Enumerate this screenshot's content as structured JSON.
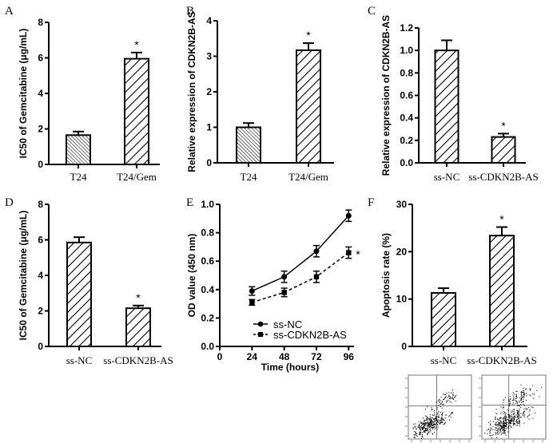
{
  "figure": {
    "background": "#ffffff",
    "ink_color": "#000000"
  },
  "chart_data": [
    {
      "panel": "A",
      "type": "bar",
      "title": "",
      "xlabel": "",
      "ylabel": "IC50 of Gemcitabine (μg/mL)",
      "categories": [
        "T24",
        "T24/Gem"
      ],
      "values": [
        1.65,
        5.95
      ],
      "errors": [
        0.2,
        0.35
      ],
      "patterns": [
        "dense-hatch",
        "hatch"
      ],
      "significance": [
        "",
        "*"
      ],
      "ylim": [
        0,
        8
      ],
      "yticks": [
        0,
        2,
        4,
        6,
        8
      ],
      "ytick_labels": [
        "0",
        "2",
        "4",
        "6",
        "8"
      ],
      "grid": false
    },
    {
      "panel": "B",
      "type": "bar",
      "title": "",
      "xlabel": "",
      "ylabel": "Relative expression of CDKN2B-AS",
      "categories": [
        "T24",
        "T24/Gem"
      ],
      "values": [
        1.0,
        3.17
      ],
      "errors": [
        0.12,
        0.2
      ],
      "patterns": [
        "dense-hatch",
        "hatch"
      ],
      "significance": [
        "",
        "*"
      ],
      "ylim": [
        0,
        4
      ],
      "yticks": [
        0,
        1,
        2,
        3,
        4
      ],
      "ytick_labels": [
        "0",
        "1",
        "2",
        "3",
        "4"
      ],
      "grid": false
    },
    {
      "panel": "C",
      "type": "bar",
      "title": "",
      "xlabel": "",
      "ylabel": "Relative expression of CDKN2B-AS",
      "categories": [
        "ss-NC",
        "ss-CDKN2B-AS"
      ],
      "values": [
        1.0,
        0.23
      ],
      "errors": [
        0.09,
        0.03
      ],
      "patterns": [
        "hatch",
        "hatch"
      ],
      "significance": [
        "",
        "*"
      ],
      "ylim": [
        0,
        1.2
      ],
      "yticks": [
        0,
        0.2,
        0.4,
        0.6,
        0.8,
        1.0,
        1.2
      ],
      "ytick_labels": [
        "0.0",
        "0.2",
        "0.4",
        "0.6",
        "0.8",
        "1.0",
        "1.2"
      ],
      "grid": false
    },
    {
      "panel": "D",
      "type": "bar",
      "title": "",
      "xlabel": "",
      "ylabel": "IC50 of Gemcitabine (μg/mL)",
      "categories": [
        "ss-NC",
        "ss-CDKN2B-AS"
      ],
      "values": [
        5.85,
        2.15
      ],
      "errors": [
        0.3,
        0.15
      ],
      "patterns": [
        "hatch",
        "hatch"
      ],
      "significance": [
        "",
        "*"
      ],
      "ylim": [
        0,
        8
      ],
      "yticks": [
        0,
        2,
        4,
        6,
        8
      ],
      "ytick_labels": [
        "0",
        "2",
        "4",
        "6",
        "8"
      ],
      "grid": false
    },
    {
      "panel": "E",
      "type": "line",
      "title": "",
      "xlabel": "Time (hours)",
      "ylabel": "OD value (450 nm)",
      "x": [
        24,
        48,
        72,
        96
      ],
      "series": [
        {
          "name": "ss-NC",
          "values": [
            0.39,
            0.49,
            0.67,
            0.92
          ],
          "errors": [
            0.03,
            0.04,
            0.04,
            0.04
          ],
          "marker": "circle",
          "dash": "solid",
          "significance": ""
        },
        {
          "name": "ss-CDKN2B-AS",
          "values": [
            0.31,
            0.38,
            0.49,
            0.66
          ],
          "errors": [
            0.02,
            0.03,
            0.04,
            0.04
          ],
          "marker": "square",
          "dash": "dashed",
          "significance": "*"
        }
      ],
      "xlim": [
        0,
        100
      ],
      "xticks": [
        0,
        24,
        48,
        72,
        96
      ],
      "xtick_labels": [
        "0",
        "24",
        "48",
        "72",
        "96"
      ],
      "ylim": [
        0,
        1.0
      ],
      "yticks": [
        0,
        0.2,
        0.4,
        0.6,
        0.8,
        1.0
      ],
      "ytick_labels": [
        "0.0",
        "0.2",
        "0.4",
        "0.6",
        "0.8",
        "1.0"
      ],
      "legend": "bottom-right",
      "grid": false
    },
    {
      "panel": "F",
      "type": "bar",
      "title": "",
      "xlabel": "",
      "ylabel": "Apoptosis rate (%)",
      "categories": [
        "ss-NC",
        "ss-CDKN2B-AS"
      ],
      "values": [
        11.3,
        23.4
      ],
      "errors": [
        1.0,
        1.8
      ],
      "patterns": [
        "hatch",
        "hatch"
      ],
      "significance": [
        "",
        "*"
      ],
      "ylim": [
        0,
        30
      ],
      "yticks": [
        0,
        10,
        20,
        30
      ],
      "ytick_labels": [
        "0",
        "10",
        "20",
        "30"
      ],
      "grid": false,
      "flow_plots": [
        {
          "name": "ss-NC",
          "quadrant_cross": [
            0.45,
            0.48
          ]
        },
        {
          "name": "ss-CDKN2B-AS",
          "quadrant_cross": [
            0.42,
            0.47
          ]
        }
      ]
    }
  ]
}
